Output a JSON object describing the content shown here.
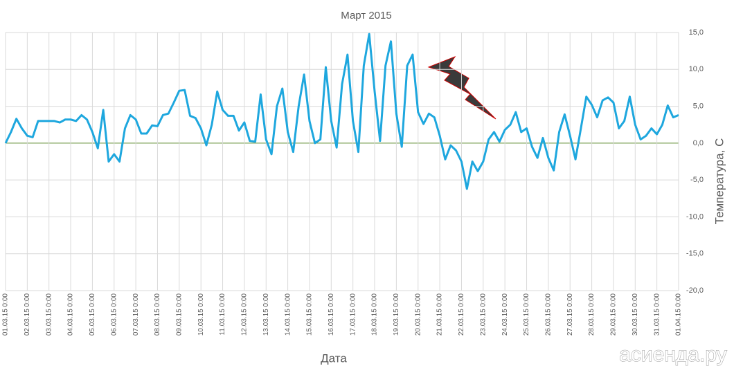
{
  "chart_data": {
    "type": "line",
    "title": "Март 2015",
    "x_label": "Дата",
    "y_label": "Температура, С",
    "watermark": "асиенда.ру",
    "categories": [
      "01.03.15 0:00",
      null,
      null,
      null,
      "02.03.15 0:00",
      null,
      null,
      null,
      "03.03.15 0:00",
      null,
      null,
      null,
      "04.03.15 0:00",
      null,
      null,
      null,
      "05.03.15 0:00",
      null,
      null,
      null,
      "06.03.15 0:00",
      null,
      null,
      null,
      "07.03.15 0:00",
      null,
      null,
      null,
      "08.03.15 0:00",
      null,
      null,
      null,
      "09.03.15 0:00",
      null,
      null,
      null,
      "10.03.15 0:00",
      null,
      null,
      null,
      "11.03.15 0:00",
      null,
      null,
      null,
      "12.03.15 0:00",
      null,
      null,
      null,
      "13.03.15 0:00",
      null,
      null,
      null,
      "14.03.15 0:00",
      null,
      null,
      null,
      "15.03.15 0:00",
      null,
      null,
      null,
      "16.03.15 0:00",
      null,
      null,
      null,
      "17.03.15 0:00",
      null,
      null,
      null,
      "18.03.15 0:00",
      null,
      null,
      null,
      "19.03.15 0:00",
      null,
      null,
      null,
      "20.03.15 0:00",
      null,
      null,
      null,
      "21.03.15 0:00",
      null,
      null,
      null,
      "22.03.15 0:00",
      null,
      null,
      null,
      "23.03.15 0:00",
      null,
      null,
      null,
      "24.03.15 0:00",
      null,
      null,
      null,
      "25.03.15 0:00",
      null,
      null,
      null,
      "26.03.15 0:00",
      null,
      null,
      null,
      "27.03.15 0:00",
      null,
      null,
      null,
      "28.03.15 0:00",
      null,
      null,
      null,
      "29.03.15 0:00",
      null,
      null,
      null,
      "30.03.15 0:00",
      null,
      null,
      null,
      "31.03.15 0:00",
      null,
      null,
      null,
      "01.04.15 0:00"
    ],
    "series": [
      {
        "name": "Температура",
        "color": "#1ea7de",
        "values": [
          0,
          1.5,
          3.3,
          2.0,
          1.0,
          0.8,
          3.0,
          3.0,
          3.0,
          3.0,
          2.8,
          3.2,
          3.2,
          3.0,
          3.8,
          3.2,
          1.5,
          -0.7,
          4.5,
          -2.5,
          -1.5,
          -2.5,
          2.0,
          3.8,
          3.2,
          1.3,
          1.3,
          2.4,
          2.3,
          3.8,
          4.0,
          5.5,
          7.1,
          7.2,
          3.7,
          3.4,
          2.0,
          -0.3,
          2.5,
          7.0,
          4.5,
          3.7,
          3.7,
          1.7,
          2.8,
          0.3,
          0.2,
          6.6,
          0.5,
          -1.5,
          5.0,
          7.4,
          1.5,
          -1.2,
          5.0,
          9.3,
          3.0,
          0,
          0.5,
          10.3,
          3.0,
          -0.6,
          8.0,
          12.0,
          3.0,
          -1.2,
          10.5,
          14.8,
          7.0,
          0.3,
          10.5,
          13.8,
          4.0,
          -0.5,
          10.5,
          12.0,
          4.2,
          2.6,
          4.0,
          3.5,
          1.0,
          -2.2,
          -0.3,
          -1.0,
          -2.5,
          -6.2,
          -2.5,
          -3.8,
          -2.5,
          0.5,
          1.5,
          0.2,
          1.8,
          2.5,
          4.2,
          1.5,
          2.0,
          -0.5,
          -2.0,
          0.7,
          -2.0,
          -3.7,
          1.5,
          3.9,
          1.0,
          -2.2,
          2.0,
          6.3,
          5.2,
          3.5,
          5.8,
          6.2,
          5.5,
          2.0,
          3.0,
          6.3,
          2.5,
          0.5,
          1.0,
          2.0,
          1.2,
          2.5,
          5.1,
          3.5,
          3.8
        ]
      }
    ],
    "ylim": [
      -20,
      15
    ],
    "yticks": [
      {
        "value": -20,
        "label": "-20,0"
      },
      {
        "value": -15,
        "label": "-15,0"
      },
      {
        "value": -10,
        "label": "-10,0"
      },
      {
        "value": -5,
        "label": "-5,0"
      },
      {
        "value": 0,
        "label": "0,0"
      },
      {
        "value": 5,
        "label": "5,0"
      },
      {
        "value": 10,
        "label": "10,0"
      },
      {
        "value": 15,
        "label": "15,0"
      }
    ],
    "grid": true,
    "y_axis_side": "right"
  }
}
